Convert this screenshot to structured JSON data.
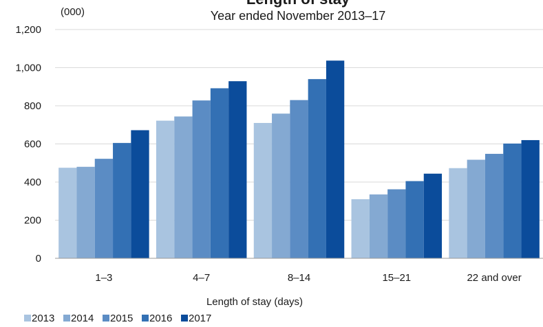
{
  "chart_data": {
    "type": "bar",
    "title": "Length of stay",
    "subtitle": "Year ended November 2013–17",
    "unit_label": "(000)",
    "xlabel": "Length of stay (days)",
    "ylabel": "",
    "ylim": [
      0,
      1200
    ],
    "yticks": [
      0,
      200,
      400,
      600,
      800,
      1000,
      1200
    ],
    "ytick_labels": [
      "0",
      "200",
      "400",
      "600",
      "800",
      "1,000",
      "1,200"
    ],
    "grid": true,
    "legend_position": "bottom-left",
    "categories": [
      "1–3",
      "4–7",
      "8–14",
      "15–21",
      "22 and over"
    ],
    "series": [
      {
        "name": "2013",
        "color": "#a9c4e0",
        "values": [
          475,
          722,
          710,
          310,
          473
        ]
      },
      {
        "name": "2014",
        "color": "#84a9d2",
        "values": [
          480,
          744,
          759,
          335,
          517
        ]
      },
      {
        "name": "2015",
        "color": "#5b8cc4",
        "values": [
          522,
          828,
          830,
          362,
          548
        ]
      },
      {
        "name": "2016",
        "color": "#3370b4",
        "values": [
          605,
          892,
          940,
          405,
          602
        ]
      },
      {
        "name": "2017",
        "color": "#0b4c9b",
        "values": [
          672,
          929,
          1037,
          444,
          620
        ]
      }
    ]
  }
}
